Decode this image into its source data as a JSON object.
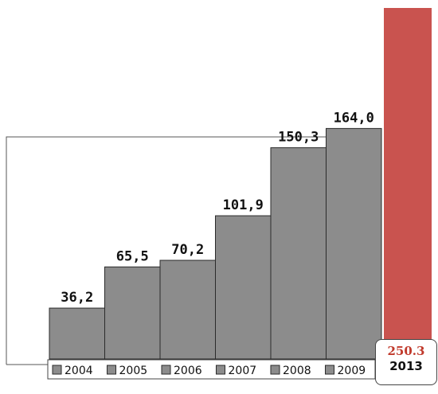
{
  "chart_data": {
    "type": "bar",
    "categories": [
      "2004",
      "2005",
      "2006",
      "2007",
      "2008",
      "2009"
    ],
    "values": [
      36.2,
      65.5,
      70.2,
      101.9,
      150.3,
      164.0
    ],
    "value_labels": [
      "36,2",
      "65,5",
      "70,2",
      "101,9",
      "150,3",
      "164,0"
    ],
    "legend_placement": "bottom",
    "grid": false,
    "highlight": {
      "category": "2013",
      "value": 250.3,
      "value_label": "250.3",
      "color": "#c9534f"
    },
    "bar_color": "#8c8c8c",
    "ylim": [
      0,
      255
    ]
  }
}
